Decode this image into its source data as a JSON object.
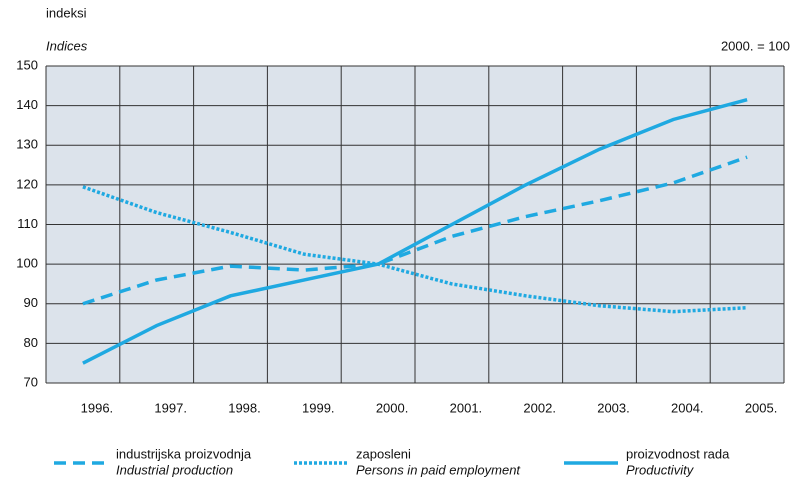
{
  "chart_data": {
    "type": "line",
    "y_label": "indeksi",
    "y_label_en": "Indices",
    "note": "2000. = 100",
    "categories": [
      "1996.",
      "1997.",
      "1998.",
      "1999.",
      "2000.",
      "2001.",
      "2002.",
      "2003.",
      "2004.",
      "2005."
    ],
    "series": [
      {
        "name": "industrijska proizvodnja",
        "name_en": "Industrial production",
        "color": "#1fa9e1",
        "dash": "dashed",
        "values": [
          90,
          96,
          99.5,
          98.5,
          100,
          107,
          112,
          116,
          120.5,
          127
        ]
      },
      {
        "name": "zaposleni",
        "name_en": "Persons in paid employment",
        "color": "#1fa9e1",
        "dash": "dotted",
        "values": [
          119.5,
          113,
          108,
          102.5,
          100,
          95,
          92,
          89.5,
          88,
          89
        ]
      },
      {
        "name": "proizvodnost rada",
        "name_en": "Productivity",
        "color": "#1fa9e1",
        "dash": "solid",
        "values": [
          75,
          84.5,
          92,
          96,
          100,
          110,
          120,
          129,
          136.5,
          141.5
        ]
      }
    ],
    "ylim": [
      70,
      150
    ],
    "yticks": [
      70,
      80,
      90,
      100,
      110,
      120,
      130,
      140,
      150
    ],
    "grid": true
  }
}
